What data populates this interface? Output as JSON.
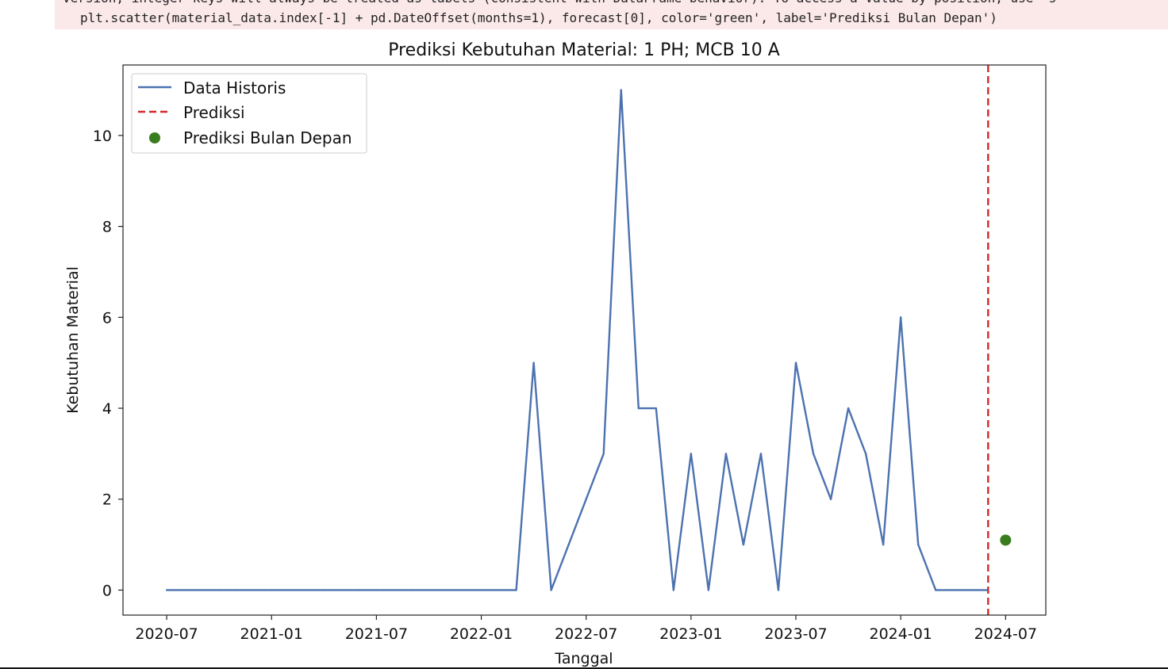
{
  "console": {
    "line1": "version, integer keys will always be treated as labels (consistent with DataFrame behavior). To access a value by position, use `s",
    "line2": "plt.scatter(material_data.index[-1] + pd.DateOffset(months=1), forecast[0], color='green', label='Prediksi Bulan Depan')"
  },
  "chart_data": {
    "type": "line",
    "title": "Prediksi Kebutuhan Material: 1 PH; MCB 10 A",
    "xlabel": "Tanggal",
    "ylabel": "Kebutuhan Material",
    "x_ticks": [
      "2020-07",
      "2021-01",
      "2021-07",
      "2022-01",
      "2022-07",
      "2023-01",
      "2023-07",
      "2024-01",
      "2024-07"
    ],
    "x_tick_months": [
      0,
      6,
      12,
      18,
      24,
      30,
      36,
      42,
      48
    ],
    "y_ticks": [
      0,
      2,
      4,
      6,
      8,
      10
    ],
    "xlim_months": [
      -2.5,
      50.3
    ],
    "ylim": [
      -0.55,
      11.55
    ],
    "legend_position": "top-left",
    "legend": [
      "Data Historis",
      "Prediksi",
      "Prediksi Bulan Depan"
    ],
    "series": [
      {
        "name": "Data Historis",
        "color": "#4c72b0",
        "x_months": [
          0,
          1,
          2,
          3,
          4,
          5,
          6,
          7,
          8,
          9,
          10,
          11,
          12,
          13,
          14,
          15,
          16,
          17,
          18,
          19,
          20,
          21,
          22,
          23,
          24,
          25,
          26,
          27,
          28,
          29,
          30,
          31,
          32,
          33,
          34,
          35,
          36,
          37,
          38,
          39,
          40,
          41,
          42,
          43,
          44,
          45,
          46,
          47
        ],
        "values": [
          0,
          0,
          0,
          0,
          0,
          0,
          0,
          0,
          0,
          0,
          0,
          0,
          0,
          0,
          0,
          0,
          0,
          0,
          0,
          0,
          0,
          5,
          0,
          1,
          2,
          3,
          11,
          4,
          4,
          0,
          3,
          0,
          3,
          1,
          3,
          0,
          5,
          3,
          2,
          4,
          3,
          1,
          6,
          1,
          0,
          0,
          0,
          0
        ]
      }
    ],
    "prediction_line": {
      "name": "Prediksi",
      "color": "#d62728",
      "x_month": 47
    },
    "forecast_point": {
      "name": "Prediksi Bulan Depan",
      "color": "#3a7d1e",
      "x_month": 48,
      "value": 1.1
    }
  }
}
